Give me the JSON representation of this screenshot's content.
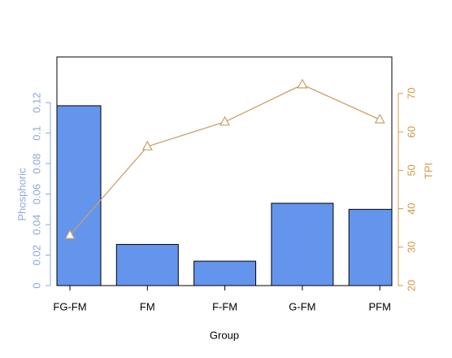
{
  "chart_data": {
    "type": "bar-line",
    "x_label": "Group",
    "y_label": "Phosphoric",
    "y2_label": "TPI",
    "categories": [
      "FG-FM",
      "FM",
      "F-FM",
      "G-FM",
      "PFM"
    ],
    "series": [
      {
        "name": "Phosphoric",
        "type": "bar",
        "color": "#6495ed",
        "values": [
          0.118,
          0.027,
          0.016,
          0.054,
          0.05
        ]
      },
      {
        "name": "TPI",
        "type": "line",
        "axis": "y2",
        "color": "#c9a06a",
        "marker": "triangle",
        "values": [
          33.1,
          56.2,
          62.6,
          72.3,
          63.2
        ]
      }
    ],
    "ylim": [
      0,
      0.15
    ],
    "yticks": [
      0,
      0.02,
      0.04,
      0.06,
      0.08,
      0.1,
      0.12
    ],
    "y_color": "#8ea8d6",
    "y2lim": [
      20,
      79.5
    ],
    "y2ticks": [
      20,
      30,
      40,
      50,
      60,
      70
    ],
    "y2_color": "#d09a45"
  }
}
